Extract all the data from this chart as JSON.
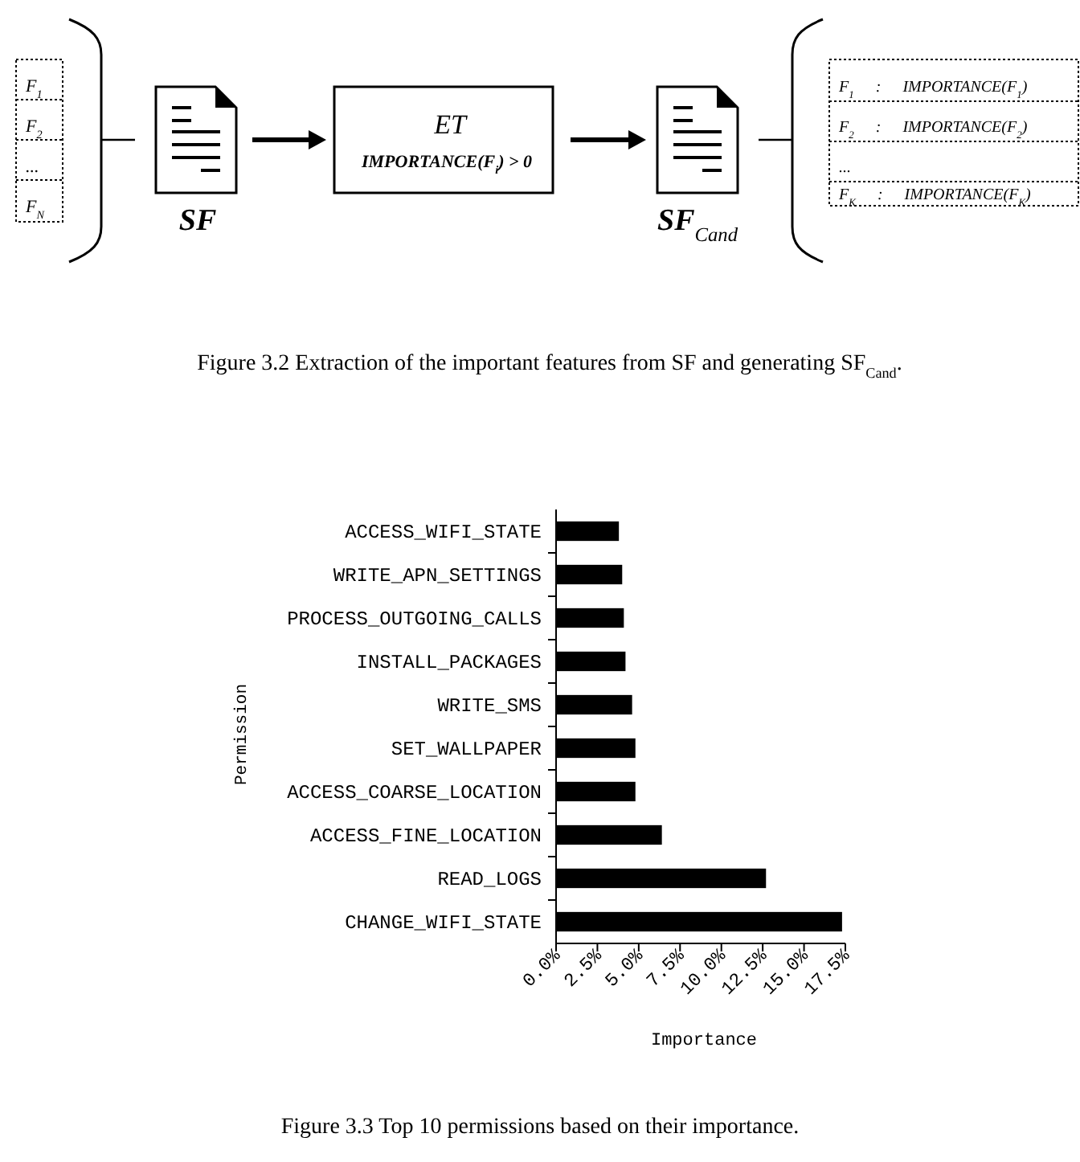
{
  "chart_data": [
    {
      "type": "other",
      "annotations": [
        "F$_{1}$",
        "F$_{2}$",
        "...",
        "F$_{N}$",
        "SF",
        "ET",
        "IMPORTANCE(F$_{i}$) > 0",
        "SF$_{Cand}$",
        "F$_{1}$ : IMPORTANCE(F$_{1}$)",
        "F$_{2}$ : IMPORTANCE(F$_{2}$)",
        "...",
        "F$_{K}$ : IMPORTANCE(F$_{K}$)",
        "Figure 3.2 Extraction of the important features from SF and generating SF$_{Cand}$."
      ]
    },
    {
      "type": "bar",
      "orientation": "horizontal",
      "categories": [
        "ACCESS_WIFI_STATE",
        "WRITE_APN_SETTINGS",
        "PROCESS_OUTGOING_CALLS",
        "INSTALL_PACKAGES",
        "WRITE_SMS",
        "SET_WALLPAPER",
        "ACCESS_COARSE_LOCATION",
        "ACCESS_FINE_LOCATION",
        "READ_LOGS",
        "CHANGE_WIFI_STATE"
      ],
      "values": [
        3.8,
        4.0,
        4.1,
        4.2,
        4.6,
        4.8,
        4.8,
        6.4,
        12.7,
        17.3
      ],
      "color": "#000000",
      "xlim": [
        0,
        17.5
      ],
      "xticks": [
        {
          "value": 0,
          "label": "0.0%"
        },
        {
          "value": 2.5,
          "label": "2.5%"
        },
        {
          "value": 5,
          "label": "5.0%"
        },
        {
          "value": 7.5,
          "label": "7.5%"
        },
        {
          "value": 10,
          "label": "10.0%"
        },
        {
          "value": 12.5,
          "label": "12.5%"
        },
        {
          "value": 15,
          "label": "15.0%"
        },
        {
          "value": 17.5,
          "label": "17.5%"
        }
      ],
      "xlabel": "Importance",
      "ylabel": "Permission",
      "annotations": [
        "Figure 3.3 Top 10 permissions based on their importance."
      ]
    }
  ]
}
